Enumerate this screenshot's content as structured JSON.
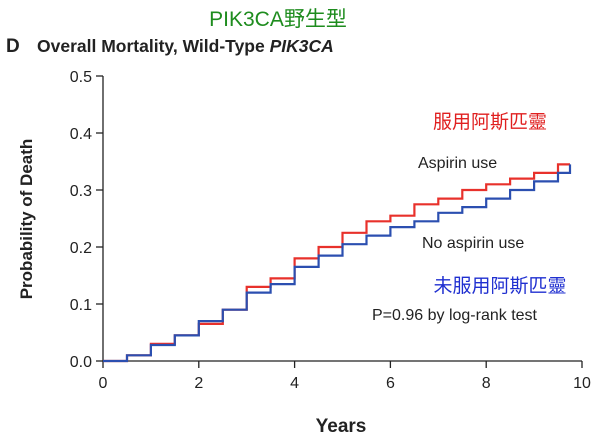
{
  "header": {
    "top_label": "PIK3CA野生型",
    "panel_letter": "D",
    "title_plain": "Overall Mortality, Wild-Type ",
    "title_italic": "PIK3CA"
  },
  "annotations": {
    "aspirin_cn": "服用阿斯匹靈",
    "aspirin_en": "Aspirin use",
    "no_aspirin_en": "No aspirin use",
    "no_aspirin_cn": "未服用阿斯匹靈",
    "pvalue": "P=0.96 by log-rank test"
  },
  "colors": {
    "aspirin": "#e8312b",
    "no_aspirin": "#2b4fb0",
    "top_label": "#1e8c1e",
    "aspirin_cn": "#e02020",
    "no_aspirin_cn": "#1f2fd0"
  },
  "chart_data": {
    "type": "line",
    "xlabel": "Years",
    "ylabel": "Probability of Death",
    "xlim": [
      0,
      10
    ],
    "ylim": [
      0,
      0.5
    ],
    "xticks": [
      0,
      2,
      4,
      6,
      8,
      10
    ],
    "yticks": [
      0.0,
      0.1,
      0.2,
      0.3,
      0.4,
      0.5
    ],
    "ytick_labels": [
      "0.0",
      "0.1",
      "0.2",
      "0.3",
      "0.4",
      "0.5"
    ],
    "grid": false,
    "step": true,
    "series": [
      {
        "name": "Aspirin use",
        "x": [
          0,
          0.5,
          1.0,
          1.5,
          2.0,
          2.5,
          3.0,
          3.5,
          4.0,
          4.5,
          5.0,
          5.5,
          6.0,
          6.5,
          7.0,
          7.5,
          8.0,
          8.5,
          9.0,
          9.5,
          9.75
        ],
        "y": [
          0,
          0.01,
          0.03,
          0.045,
          0.065,
          0.09,
          0.13,
          0.145,
          0.18,
          0.2,
          0.225,
          0.245,
          0.255,
          0.275,
          0.285,
          0.3,
          0.31,
          0.32,
          0.33,
          0.345,
          0.345
        ]
      },
      {
        "name": "No aspirin use",
        "x": [
          0,
          0.5,
          1.0,
          1.5,
          2.0,
          2.5,
          3.0,
          3.5,
          4.0,
          4.5,
          5.0,
          5.5,
          6.0,
          6.5,
          7.0,
          7.5,
          8.0,
          8.5,
          9.0,
          9.5,
          9.75
        ],
        "y": [
          0,
          0.01,
          0.028,
          0.045,
          0.07,
          0.09,
          0.12,
          0.135,
          0.165,
          0.185,
          0.205,
          0.22,
          0.235,
          0.245,
          0.26,
          0.27,
          0.285,
          0.3,
          0.315,
          0.33,
          0.345
        ]
      }
    ]
  }
}
